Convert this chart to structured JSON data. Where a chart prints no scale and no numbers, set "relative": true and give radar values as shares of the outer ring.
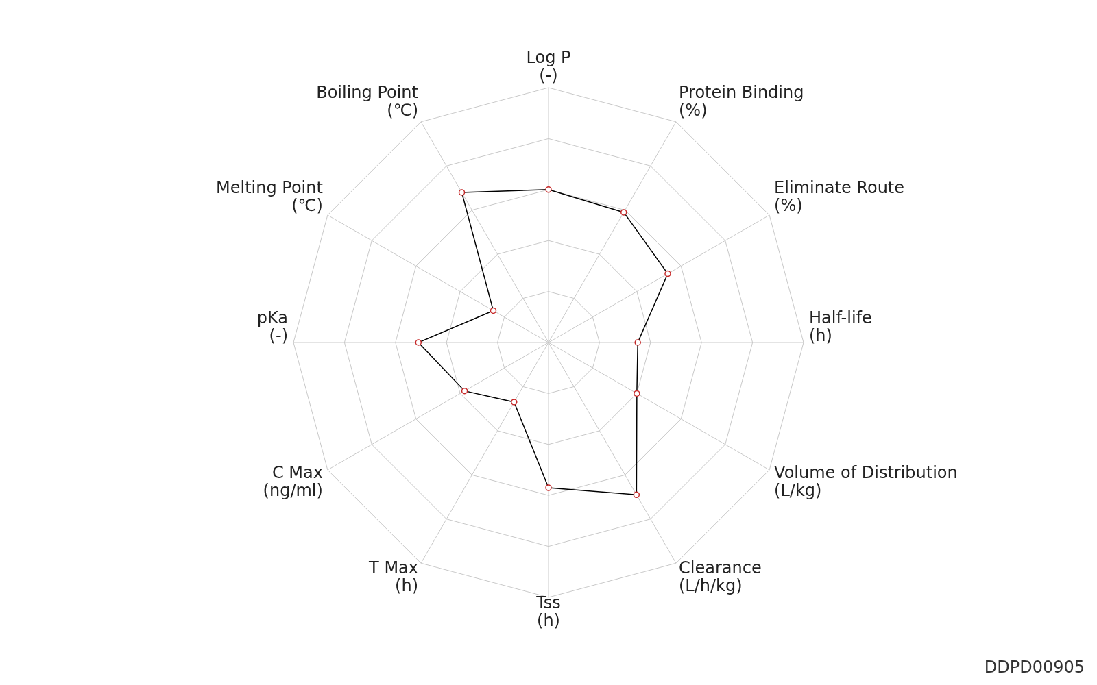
{
  "chart_data": {
    "type": "radar",
    "relative": true,
    "categories": [
      "Log P\n(-)",
      "Protein Binding\n(%)",
      "Eliminate Route\n(%)",
      "Half-life\n(h)",
      "Volume of Distribution\n(L/kg)",
      "Clearance\n(L/h/kg)",
      "Tss\n(h)",
      "T Max\n(h)",
      "C Max\n(ng/ml)",
      "pKa\n(-)",
      "Melting Point\n(℃)",
      "Boiling Point\n(℃)"
    ],
    "series": [
      {
        "color": "#000000",
        "values": [
          0.6,
          0.59,
          0.54,
          0.35,
          0.4,
          0.69,
          0.57,
          0.27,
          0.38,
          0.51,
          0.25,
          0.68
        ]
      }
    ],
    "marker": "circle",
    "grid": true,
    "annotations": [
      "DDPD00905"
    ]
  }
}
